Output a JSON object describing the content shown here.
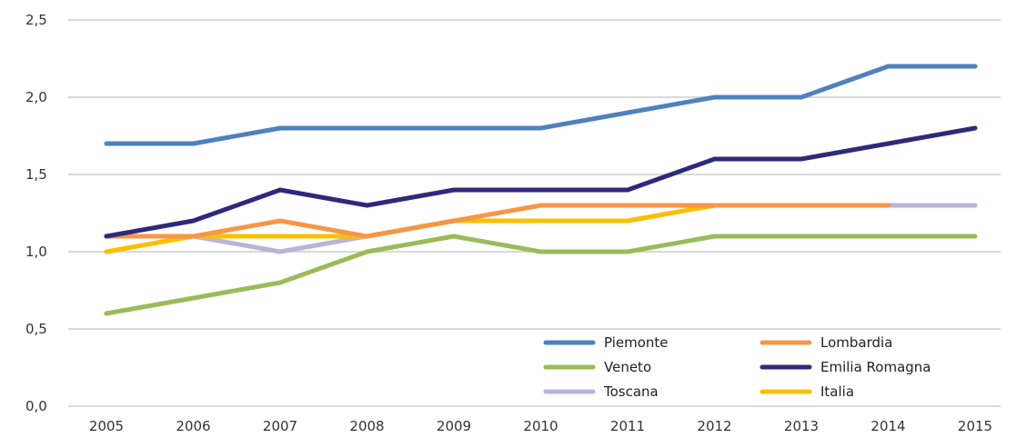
{
  "chart_data": {
    "type": "line",
    "x": [
      "2005",
      "2006",
      "2007",
      "2008",
      "2009",
      "2010",
      "2011",
      "2012",
      "2013",
      "2014",
      "2015"
    ],
    "ylim": [
      0.0,
      2.5
    ],
    "yticks": [
      "0,0",
      "0,5",
      "1,0",
      "1,5",
      "2,0",
      "2,5"
    ],
    "ytick_values": [
      0.0,
      0.5,
      1.0,
      1.5,
      2.0,
      2.5
    ],
    "grid": true,
    "legend_position": "bottom-right",
    "series": [
      {
        "name": "Piemonte",
        "color": "#4f81bd",
        "values": [
          1.7,
          1.7,
          1.8,
          1.8,
          1.8,
          1.8,
          1.9,
          2.0,
          2.0,
          2.2,
          2.2
        ]
      },
      {
        "name": "Lombardia",
        "color": "#f79646",
        "values": [
          1.1,
          1.1,
          1.2,
          1.1,
          1.2,
          1.3,
          1.3,
          1.3,
          1.3,
          1.3,
          null
        ]
      },
      {
        "name": "Veneto",
        "color": "#9bbb59",
        "values": [
          0.6,
          0.7,
          0.8,
          1.0,
          1.1,
          1.0,
          1.0,
          1.1,
          1.1,
          1.1,
          1.1
        ]
      },
      {
        "name": "Emilia Romagna",
        "color": "#2e2a7a",
        "values": [
          1.1,
          1.2,
          1.4,
          1.3,
          1.4,
          1.4,
          1.4,
          1.6,
          1.6,
          1.7,
          1.8
        ]
      },
      {
        "name": "Toscana",
        "color": "#b8b4d8",
        "values": [
          1.1,
          1.1,
          1.0,
          1.1,
          1.2,
          1.2,
          1.2,
          1.3,
          1.3,
          1.3,
          1.3
        ]
      },
      {
        "name": "Italia",
        "color": "#fac000",
        "values": [
          1.0,
          1.1,
          1.1,
          1.1,
          1.2,
          1.2,
          1.2,
          1.3,
          1.3,
          1.3,
          null
        ]
      }
    ]
  }
}
